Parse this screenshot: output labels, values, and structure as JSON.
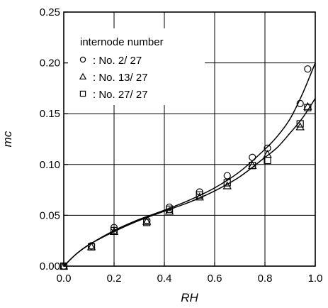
{
  "chart_data": {
    "type": "scatter",
    "xlabel": "RH",
    "ylabel": "mc",
    "xlim": [
      0.0,
      1.0
    ],
    "ylim": [
      0.0,
      0.25
    ],
    "xticks": [
      "0.0",
      "0.2",
      "0.4",
      "0.6",
      "0.8",
      "1.0"
    ],
    "yticks": [
      "0.00",
      "0.05",
      "0.10",
      "0.15",
      "0.20",
      "0.25"
    ],
    "grid": true,
    "legend": {
      "title": "internode number",
      "placement": "top-left",
      "entries": [
        {
          "marker": "circle",
          "label": ": No. 2/ 27"
        },
        {
          "marker": "triangle",
          "label": ": No. 13/ 27"
        },
        {
          "marker": "square",
          "label": ": No. 27/ 27"
        }
      ]
    },
    "series": [
      {
        "name": "No. 2/ 27",
        "marker": "circle",
        "points": [
          [
            0.0,
            0.0
          ],
          [
            0.11,
            0.02
          ],
          [
            0.2,
            0.038
          ],
          [
            0.33,
            0.045
          ],
          [
            0.42,
            0.058
          ],
          [
            0.54,
            0.073
          ],
          [
            0.65,
            0.089
          ],
          [
            0.75,
            0.107
          ],
          [
            0.81,
            0.116
          ],
          [
            0.94,
            0.16
          ],
          [
            0.97,
            0.194
          ]
        ]
      },
      {
        "name": "No. 13/ 27",
        "marker": "triangle",
        "points": [
          [
            0.0,
            0.0
          ],
          [
            0.11,
            0.019
          ],
          [
            0.2,
            0.034
          ],
          [
            0.33,
            0.044
          ],
          [
            0.42,
            0.054
          ],
          [
            0.54,
            0.068
          ],
          [
            0.65,
            0.079
          ],
          [
            0.75,
            0.099
          ],
          [
            0.81,
            0.11
          ],
          [
            0.94,
            0.137
          ],
          [
            0.97,
            0.157
          ]
        ]
      },
      {
        "name": "No. 27/ 27",
        "marker": "square",
        "points": [
          [
            0.0,
            0.0
          ],
          [
            0.11,
            0.019
          ],
          [
            0.2,
            0.035
          ],
          [
            0.33,
            0.043
          ],
          [
            0.42,
            0.056
          ],
          [
            0.54,
            0.07
          ],
          [
            0.65,
            0.082
          ],
          [
            0.75,
            0.099
          ],
          [
            0.81,
            0.104
          ],
          [
            0.94,
            0.14
          ],
          [
            0.97,
            0.156
          ]
        ]
      }
    ],
    "curves": [
      {
        "points": [
          [
            0.0,
            0.0
          ],
          [
            0.05,
            0.012
          ],
          [
            0.1,
            0.021
          ],
          [
            0.2,
            0.035
          ],
          [
            0.3,
            0.046
          ],
          [
            0.4,
            0.055
          ],
          [
            0.5,
            0.065
          ],
          [
            0.6,
            0.077
          ],
          [
            0.7,
            0.093
          ],
          [
            0.8,
            0.115
          ],
          [
            0.85,
            0.128
          ],
          [
            0.9,
            0.145
          ],
          [
            0.95,
            0.17
          ],
          [
            1.0,
            0.2
          ]
        ]
      },
      {
        "points": [
          [
            0.0,
            0.0
          ],
          [
            0.05,
            0.012
          ],
          [
            0.1,
            0.021
          ],
          [
            0.2,
            0.034
          ],
          [
            0.3,
            0.045
          ],
          [
            0.4,
            0.054
          ],
          [
            0.5,
            0.063
          ],
          [
            0.6,
            0.074
          ],
          [
            0.7,
            0.088
          ],
          [
            0.8,
            0.107
          ],
          [
            0.85,
            0.117
          ],
          [
            0.9,
            0.131
          ],
          [
            0.95,
            0.146
          ],
          [
            1.0,
            0.165
          ]
        ]
      }
    ]
  }
}
